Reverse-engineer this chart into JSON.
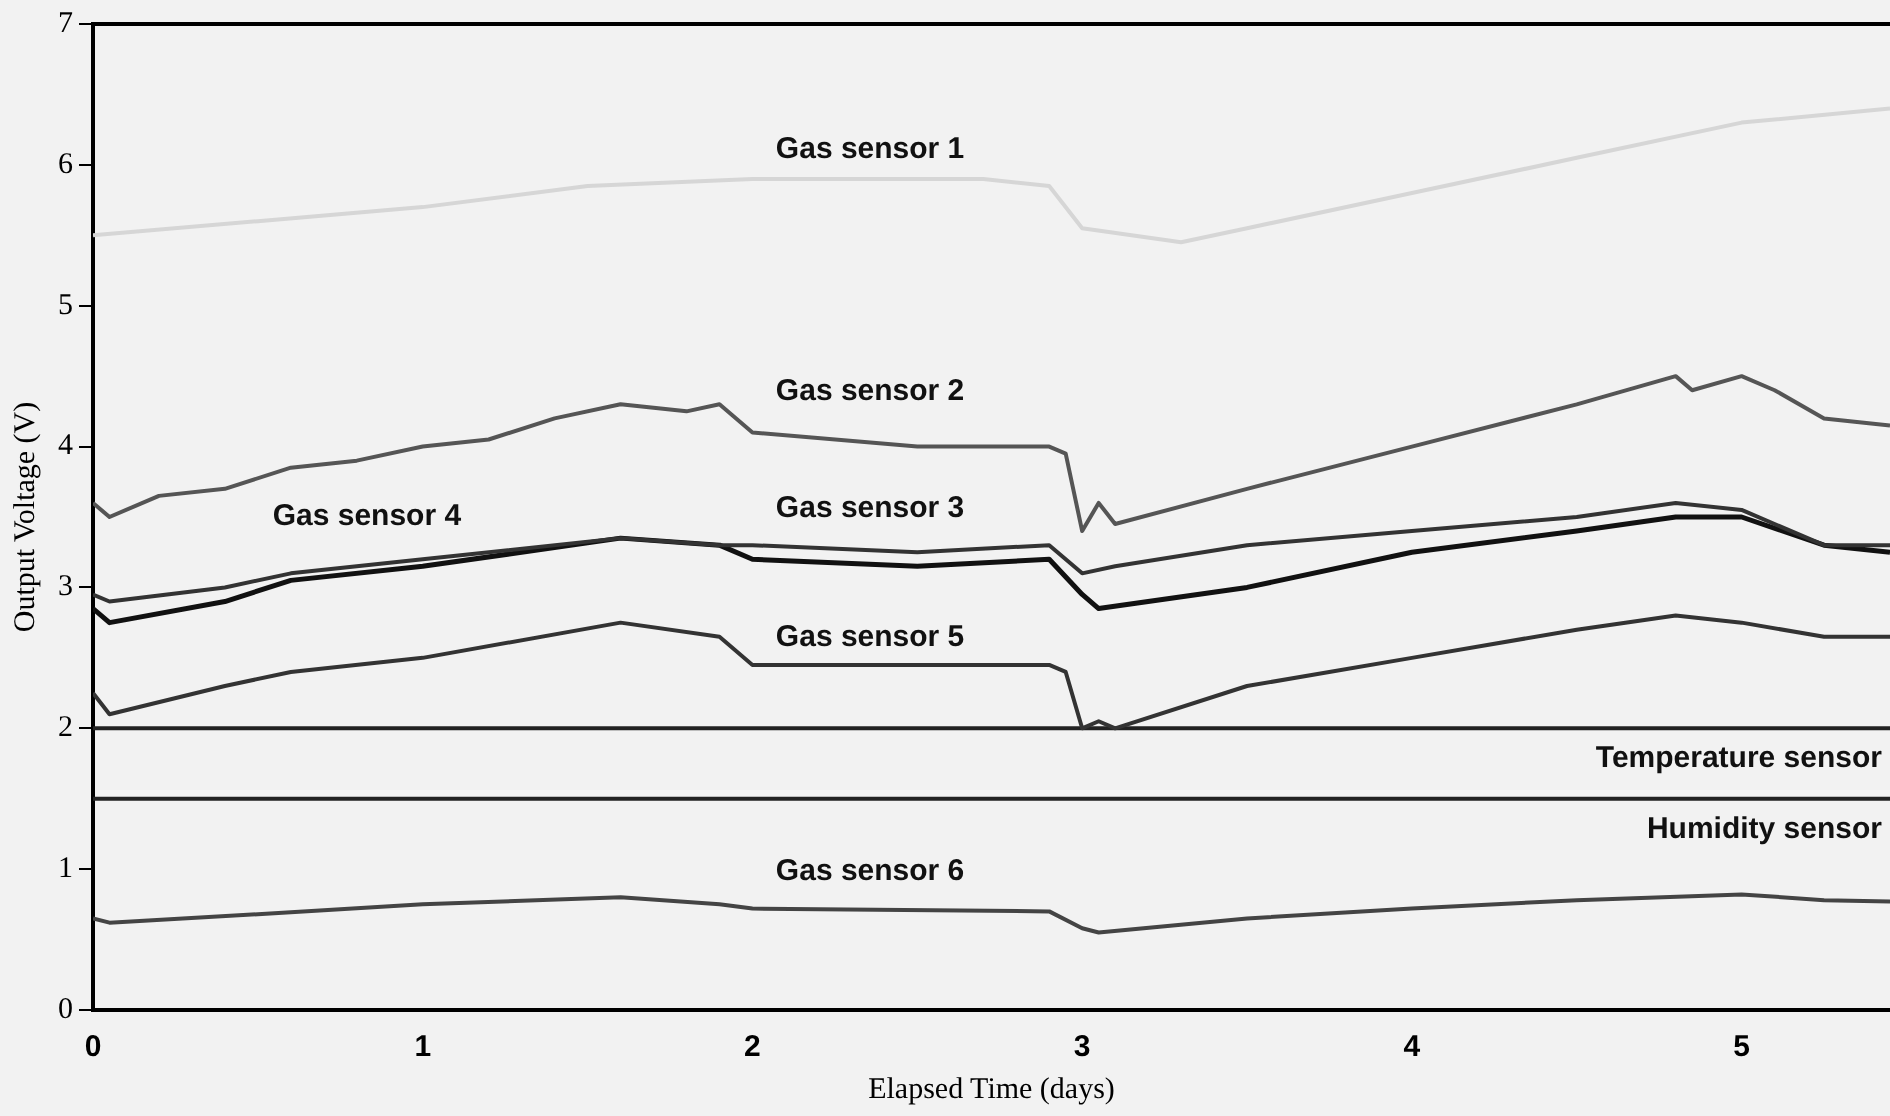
{
  "chart_data": {
    "type": "line",
    "xlabel": "Elapsed Time (days)",
    "ylabel": "Output Voltage (V)",
    "xlim": [
      0,
      5.45
    ],
    "xticks": [
      0,
      1,
      2,
      3,
      4,
      5
    ],
    "ylim": [
      0,
      7
    ],
    "yticks": [
      0,
      1,
      2,
      3,
      4,
      5,
      6,
      7
    ],
    "grid": false,
    "legend": false,
    "marker": "none",
    "line_style": "solid",
    "series": [
      {
        "name": "Gas sensor 1",
        "color": "#d6d6d6",
        "x": [
          0,
          0.5,
          1,
          1.5,
          2,
          2.7,
          2.9,
          3,
          3.3,
          3.5,
          4,
          4.5,
          5,
          5.45
        ],
        "values": [
          5.5,
          5.6,
          5.7,
          5.85,
          5.9,
          5.9,
          5.85,
          5.55,
          5.45,
          5.55,
          5.8,
          6.05,
          6.3,
          6.4
        ]
      },
      {
        "name": "Gas sensor 2",
        "color": "#555555",
        "x": [
          0,
          0.05,
          0.2,
          0.4,
          0.6,
          0.8,
          1,
          1.2,
          1.4,
          1.6,
          1.8,
          1.9,
          2,
          2.5,
          2.9,
          2.95,
          3,
          3.05,
          3.1,
          3.5,
          4,
          4.5,
          4.8,
          4.85,
          5,
          5.1,
          5.25,
          5.45
        ],
        "values": [
          3.6,
          3.5,
          3.65,
          3.7,
          3.85,
          3.9,
          4,
          4.05,
          4.2,
          4.3,
          4.25,
          4.3,
          4.1,
          4,
          4,
          3.95,
          3.4,
          3.6,
          3.45,
          3.7,
          4,
          4.3,
          4.5,
          4.4,
          4.5,
          4.4,
          4.2,
          4.15
        ]
      },
      {
        "name": "Gas sensor 3",
        "color": "#333333",
        "x": [
          0,
          0.05,
          0.4,
          0.6,
          1,
          1.6,
          1.9,
          2,
          2.5,
          2.9,
          3,
          3.1,
          3.5,
          4,
          4.5,
          4.8,
          5,
          5.25,
          5.45
        ],
        "values": [
          2.95,
          2.9,
          3,
          3.1,
          3.2,
          3.35,
          3.3,
          3.3,
          3.25,
          3.3,
          3.1,
          3.15,
          3.3,
          3.4,
          3.5,
          3.6,
          3.55,
          3.3,
          3.3
        ]
      },
      {
        "name": "Gas sensor 4",
        "color": "#111111",
        "x": [
          0,
          0.05,
          0.4,
          0.6,
          1,
          1.6,
          1.9,
          2,
          2.5,
          2.9,
          3,
          3.05,
          3.5,
          4,
          4.5,
          4.8,
          5,
          5.25,
          5.45
        ],
        "values": [
          2.85,
          2.75,
          2.9,
          3.05,
          3.15,
          3.35,
          3.3,
          3.2,
          3.15,
          3.2,
          2.95,
          2.85,
          3,
          3.25,
          3.4,
          3.5,
          3.5,
          3.3,
          3.25
        ]
      },
      {
        "name": "Gas sensor 5",
        "color": "#333333",
        "x": [
          0,
          0.05,
          0.4,
          0.6,
          1,
          1.6,
          1.9,
          2,
          2.5,
          2.9,
          2.95,
          3,
          3.05,
          3.1,
          3.5,
          4,
          4.5,
          4.8,
          5,
          5.25,
          5.45
        ],
        "values": [
          2.25,
          2.1,
          2.3,
          2.4,
          2.5,
          2.75,
          2.65,
          2.45,
          2.45,
          2.45,
          2.4,
          2,
          2.05,
          2,
          2.3,
          2.5,
          2.7,
          2.8,
          2.75,
          2.65,
          2.65
        ]
      },
      {
        "name": "Temperature sensor",
        "color": "#222222",
        "x": [
          0,
          5.45
        ],
        "values": [
          2,
          2
        ]
      },
      {
        "name": "Humidity sensor",
        "color": "#222222",
        "x": [
          0,
          5.45
        ],
        "values": [
          1.5,
          1.5
        ]
      },
      {
        "name": "Gas sensor 6",
        "color": "#444444",
        "x": [
          0,
          0.05,
          0.5,
          1,
          1.6,
          1.9,
          2,
          2.9,
          3,
          3.05,
          3.5,
          4,
          4.5,
          5,
          5.25,
          5.45
        ],
        "values": [
          0.65,
          0.62,
          0.68,
          0.75,
          0.8,
          0.75,
          0.72,
          0.7,
          0.58,
          0.55,
          0.65,
          0.72,
          0.78,
          0.82,
          0.78,
          0.77
        ]
      }
    ]
  }
}
